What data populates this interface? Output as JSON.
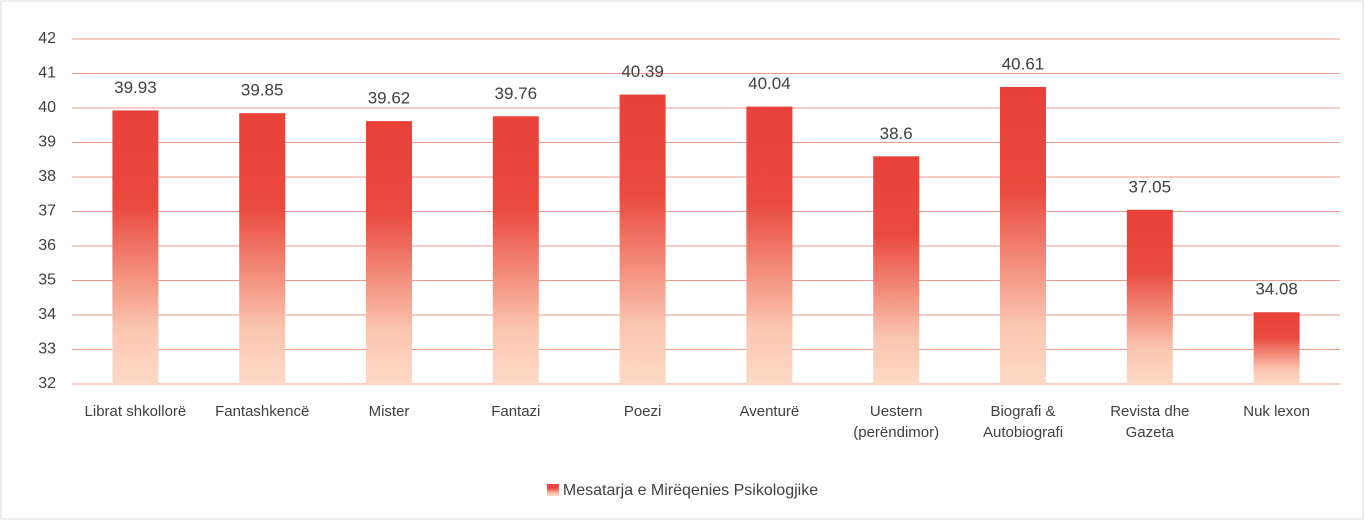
{
  "chart_data": {
    "type": "bar",
    "categories": [
      "Librat shkollorë",
      "Fantashkencë",
      "Mister",
      "Fantazi",
      "Poezi",
      "Aventurë",
      "Uestern (perëndimor)",
      "Biografi & Autobiografi",
      "Revista dhe Gazeta",
      "Nuk lexon"
    ],
    "series": [
      {
        "name": "Mesatarja e Mirëqenies Psikologjike",
        "color": "#e8413a",
        "values": [
          39.93,
          39.85,
          39.62,
          39.76,
          40.39,
          40.04,
          38.6,
          40.61,
          37.05,
          34.08
        ]
      }
    ],
    "ylim": [
      32,
      42
    ],
    "yticks": [
      32,
      33,
      34,
      35,
      36,
      37,
      38,
      39,
      40,
      41,
      42
    ],
    "grid": true,
    "grid_color": "#ee9a8c",
    "legend": "bottom"
  }
}
